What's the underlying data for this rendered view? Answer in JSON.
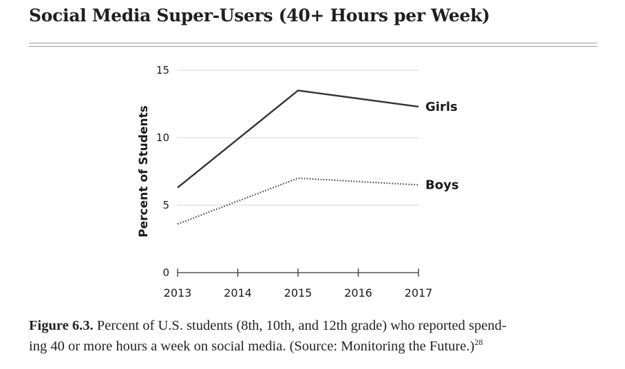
{
  "page": {
    "title": "Social Media Super-Users (40+ Hours per Week)"
  },
  "caption": {
    "label": "Figure 6.3.",
    "line1": " Percent of U.S. students (8th, 10th, and 12th grade) who reported spend-",
    "line2": "ing 40 or more hours a week on social media. (Source: Monitoring the Future.)",
    "footnote": "28"
  },
  "chart_data": {
    "type": "line",
    "title": "Social Media Super-Users (40+ Hours per Week)",
    "xlabel": "",
    "ylabel": "Percent of Students",
    "x": [
      2013,
      2014,
      2015,
      2016,
      2017
    ],
    "xticks": [
      "2013",
      "2014",
      "2015",
      "2016",
      "2017"
    ],
    "yticks": [
      0,
      5,
      10,
      15
    ],
    "ylim": [
      0,
      15
    ],
    "xlim": [
      2013,
      2017
    ],
    "grid": "horizontal",
    "legend": "inline labels at right end of lines",
    "series": [
      {
        "name": "Girls",
        "style": "solid",
        "color": "#333333",
        "points": [
          [
            2013,
            6.3
          ],
          [
            2015,
            13.5
          ],
          [
            2017,
            12.3
          ]
        ]
      },
      {
        "name": "Boys",
        "style": "dotted",
        "color": "#444444",
        "points": [
          [
            2013,
            3.6
          ],
          [
            2015,
            7.0
          ],
          [
            2017,
            6.5
          ]
        ]
      }
    ]
  }
}
